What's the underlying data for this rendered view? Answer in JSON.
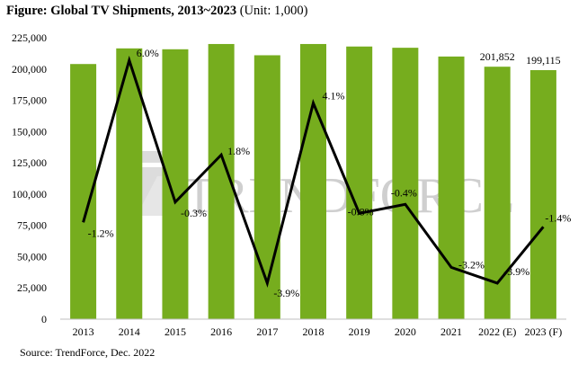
{
  "title_bold": "Figure: Global TV Shipments, 2013~2023",
  "title_unit": "(Unit: 1,000)",
  "source": "Source: TrendForce, Dec. 2022",
  "watermark": "TRENDFORCE",
  "colors": {
    "bar": "#76ad1e",
    "line": "#000000",
    "watermark": "#cccccc"
  },
  "chart_data": {
    "type": "bar",
    "categories": [
      "2013",
      "2014",
      "2015",
      "2016",
      "2017",
      "2018",
      "2019",
      "2020",
      "2021",
      "2022 (E)",
      "2023 (F)"
    ],
    "series": [
      {
        "values": [
          204000,
          216500,
          215800,
          220000,
          211000,
          220000,
          218000,
          217000,
          210000,
          201852,
          199115
        ]
      },
      {
        "type": "line",
        "values": [
          -1.2,
          6.0,
          -0.3,
          1.8,
          -3.9,
          4.1,
          -0.8,
          -0.4,
          -3.2,
          -3.9,
          -1.4
        ]
      }
    ],
    "bar_labels": [
      "",
      "",
      "",
      "",
      "",
      "",
      "",
      "",
      "",
      "201,852",
      "199,115"
    ],
    "line_labels": [
      "-1.2%",
      "6.0%",
      "-0.3%",
      "1.8%",
      "-3.9%",
      "4.1%",
      "-0.8%",
      "-0.4%",
      "-3.2%",
      "-3.9%",
      "-1.4%"
    ],
    "y_ticks": [
      "0",
      "25,000",
      "50,000",
      "75,000",
      "100,000",
      "125,000",
      "150,000",
      "175,000",
      "200,000",
      "225,000"
    ],
    "ylim": [
      0,
      225000
    ],
    "y2lim": [
      -5.5,
      7.0
    ],
    "grid": false,
    "legend": "none"
  }
}
